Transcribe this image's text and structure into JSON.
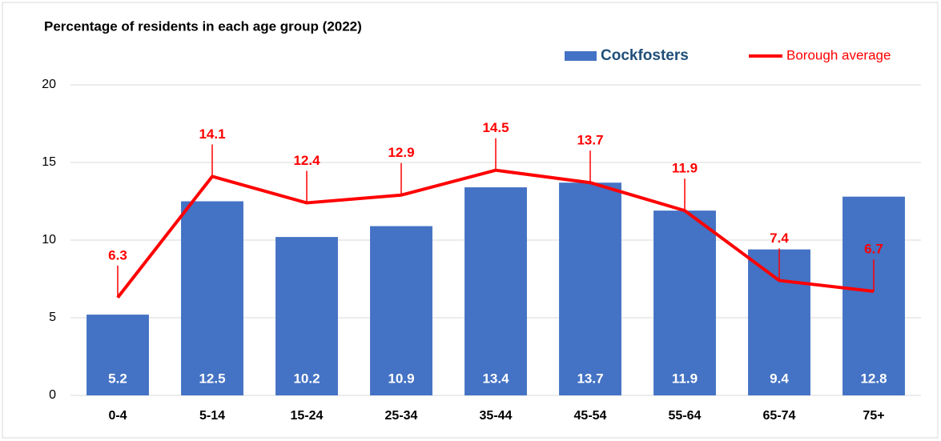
{
  "chart_data": {
    "type": "bar",
    "title": "Percentage of residents in each age group (2022)",
    "categories": [
      "0-4",
      "5-14",
      "15-24",
      "25-34",
      "35-44",
      "45-54",
      "55-64",
      "65-74",
      "75+"
    ],
    "series": [
      {
        "name": "Cockfosters",
        "type": "bar",
        "color": "#4472c4",
        "values": [
          5.2,
          12.5,
          10.2,
          10.9,
          13.4,
          13.7,
          11.9,
          9.4,
          12.8
        ]
      },
      {
        "name": "Borough average",
        "type": "line",
        "color": "#ff0000",
        "values": [
          6.3,
          14.1,
          12.4,
          12.9,
          14.5,
          13.7,
          11.9,
          7.4,
          6.7
        ]
      }
    ],
    "ylim": [
      0,
      20
    ],
    "yticks": [
      0,
      5,
      10,
      15,
      20
    ],
    "grid": true,
    "legend": "top-right"
  }
}
